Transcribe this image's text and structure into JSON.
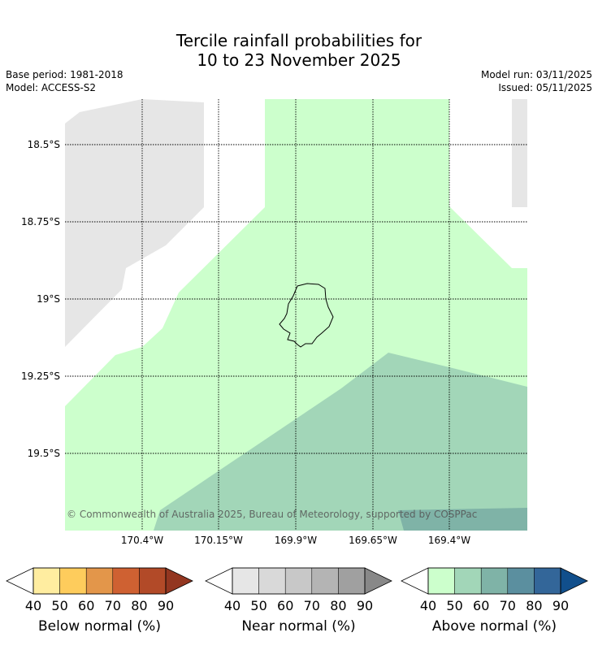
{
  "title_line1": "Tercile rainfall probabilities for",
  "title_line2": "10 to 23 November 2025",
  "base_period": "Base period: 1981-2018",
  "model": "Model: ACCESS-S2",
  "model_run": "Model run: 03/11/2025",
  "issued": "Issued: 05/11/2025",
  "lat_labels": [
    "18.5°S",
    "18.75°S",
    "19°S",
    "19.25°S",
    "19.5°S"
  ],
  "lon_labels": [
    "170.4°W",
    "170.15°W",
    "169.9°W",
    "169.65°W",
    "169.4°W"
  ],
  "copyright": "© Commonwealth of Australia 2025, Bureau of Meteorology, supported by COSPPac",
  "legends": [
    {
      "title": "Below normal (%)",
      "ticks": [
        "40",
        "50",
        "60",
        "70",
        "80",
        "90"
      ],
      "colors": [
        "#ffeda0",
        "#fecc5c",
        "#e3964a",
        "#cf6132",
        "#b24a28",
        "#933620"
      ]
    },
    {
      "title": "Near normal (%)",
      "ticks": [
        "40",
        "50",
        "60",
        "70",
        "80",
        "90"
      ],
      "colors": [
        "#e6e6e6",
        "#d9d9d9",
        "#c8c8c8",
        "#b4b4b4",
        "#a0a0a0",
        "#888888"
      ]
    },
    {
      "title": "Above normal (%)",
      "ticks": [
        "40",
        "50",
        "60",
        "70",
        "80",
        "90"
      ],
      "colors": [
        "#ccffcc",
        "#a2d6b8",
        "#7fb3a7",
        "#5b8f9f",
        "#336699",
        "#114f8c"
      ]
    }
  ],
  "map_colors": {
    "near_normal_40": "#e6e6e6",
    "above_normal_40": "#ccffcc",
    "above_normal_50": "#a2d6b8",
    "above_normal_60": "#7fb3a7"
  }
}
